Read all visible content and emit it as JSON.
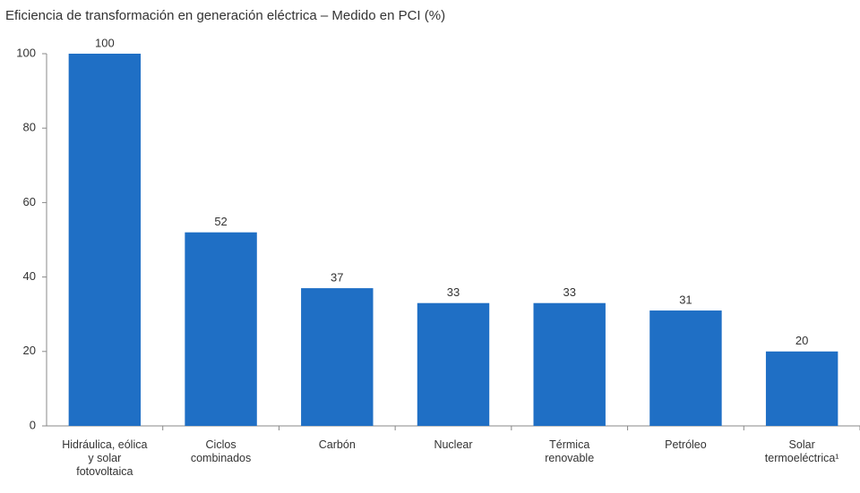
{
  "chart_data": {
    "type": "bar",
    "title": "Eficiencia de transformación en generación eléctrica – Medido en PCI (%)",
    "categories": [
      "Hidráulica, eólica y solar fotovoltaica",
      "Ciclos combinados",
      "Carbón",
      "Nuclear",
      "Térmica renovable",
      "Petróleo",
      "Solar termoeléctrica¹"
    ],
    "values": [
      100,
      52,
      37,
      33,
      33,
      31,
      20
    ],
    "color": "#1f6fc5",
    "ylim": [
      0,
      100
    ],
    "yticks": [
      0,
      20,
      40,
      60,
      80,
      100
    ],
    "grid": false
  }
}
